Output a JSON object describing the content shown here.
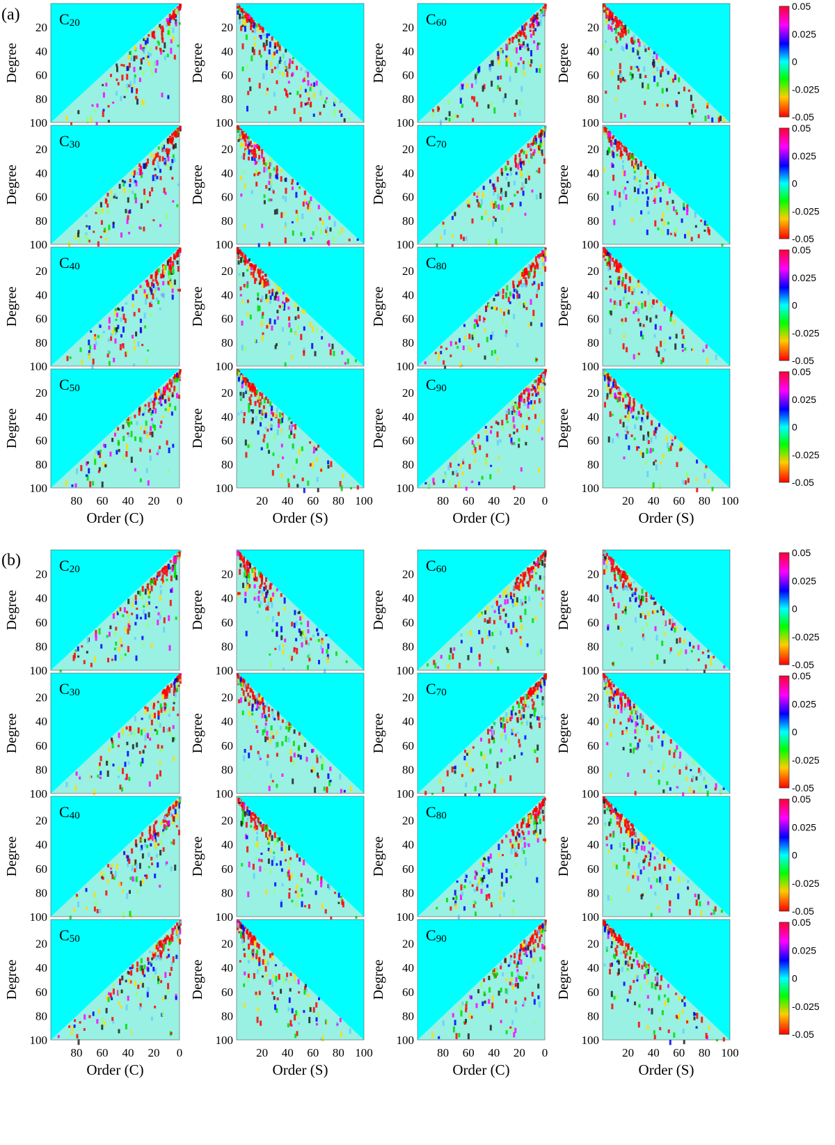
{
  "panels": [
    {
      "label": "(a)",
      "row_labels": [
        [
          "C",
          "20"
        ],
        [
          "C",
          "30"
        ],
        [
          "C",
          "40"
        ],
        [
          "C",
          "50"
        ]
      ],
      "row_labels_right": [
        [
          "C",
          "60"
        ],
        [
          "C",
          "70"
        ],
        [
          "C",
          "80"
        ],
        [
          "C",
          "90"
        ]
      ]
    },
    {
      "label": "(b)",
      "row_labels": [
        [
          "C",
          "20"
        ],
        [
          "C",
          "30"
        ],
        [
          "C",
          "40"
        ],
        [
          "C",
          "50"
        ]
      ],
      "row_labels_right": [
        [
          "C",
          "60"
        ],
        [
          "C",
          "70"
        ],
        [
          "C",
          "80"
        ],
        [
          "C",
          "90"
        ]
      ]
    }
  ],
  "chart_data": {
    "type": "heatmap",
    "description_of_layout": "two panels (a) and (b); each has 4 rows x 4 triangular spherical-harmonic coefficient maps",
    "ylabel": "Degree",
    "xlabel_c": "Order (C)",
    "xlabel_s": "Order (S)",
    "y_ticks": [
      "20",
      "40",
      "60",
      "80",
      "100"
    ],
    "x_ticks_c": [
      "80",
      "60",
      "40",
      "20",
      "0"
    ],
    "x_ticks_s": [
      "20",
      "40",
      "60",
      "80",
      "100"
    ],
    "ylim": [
      0,
      100
    ],
    "xlim_c": [
      100,
      0
    ],
    "xlim_s": [
      0,
      100
    ],
    "colorbar": {
      "ticks": [
        "0.05",
        "0.025",
        "0",
        "-0.025",
        "-0.05"
      ],
      "range": [
        -0.05,
        0.05
      ],
      "colors": [
        "#ff0000",
        "#ffcc00",
        "#00ff00",
        "#00ffff",
        "#0000ff",
        "#ff00ff",
        "#ff0000"
      ]
    },
    "background_color": "#00ffff"
  }
}
